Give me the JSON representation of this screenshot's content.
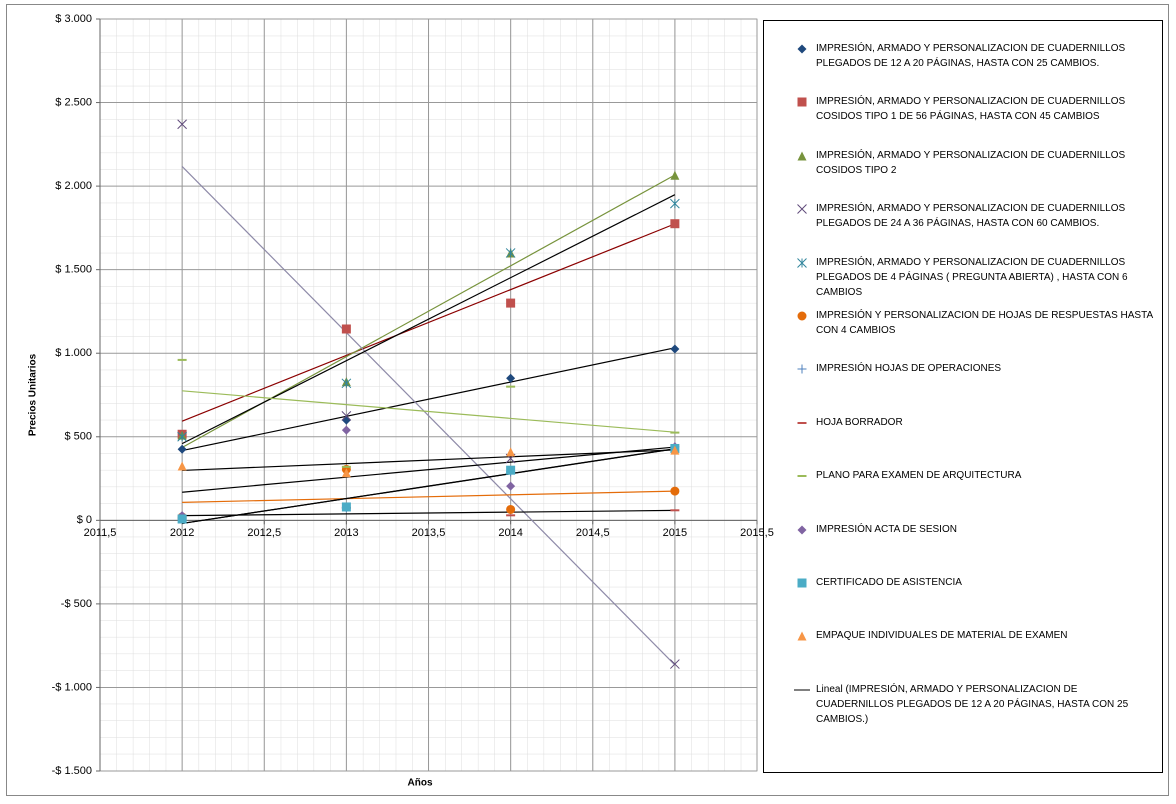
{
  "chart_data": {
    "type": "scatter",
    "xlabel": "Años",
    "ylabel": "Precios Unitarios",
    "x": [
      2012,
      2013,
      2014,
      2015
    ],
    "xlim": [
      2011.5,
      2015.5
    ],
    "xticks": [
      {
        "value": 2011.5,
        "label": "2011,5"
      },
      2012,
      {
        "value": 2012.5,
        "label": "2012,5"
      },
      2013,
      {
        "value": 2013.5,
        "label": "2013,5"
      },
      2014,
      {
        "value": 2014.5,
        "label": "2014,5"
      },
      2015,
      {
        "value": 2015.5,
        "label": "2015,5"
      }
    ],
    "ylim": [
      -1500,
      3000
    ],
    "yticks": [
      {
        "value": -1500,
        "label": "-$ 1.500"
      },
      {
        "value": -1000,
        "label": "-$ 1.000"
      },
      {
        "value": -500,
        "label": "-$ 500"
      },
      {
        "value": 0,
        "label": "$ 0"
      },
      {
        "value": 500,
        "label": "$ 500"
      },
      {
        "value": 1000,
        "label": "$ 1.000"
      },
      {
        "value": 1500,
        "label": "$ 1.500"
      },
      {
        "value": 2000,
        "label": "$ 2.000"
      },
      {
        "value": 2500,
        "label": "$ 2.500"
      },
      {
        "value": 3000,
        "label": "$ 3.000"
      }
    ],
    "grid": true,
    "legend": "right",
    "trendline_color": "#000000",
    "trendline_label": "Lineal (IMPRESIÓN, ARMADO Y PERSONALIZACION DE CUADERNILLOS PLEGADOS DE 12 A 20 PÁGINAS, HASTA CON 25 CAMBIOS.)",
    "series": [
      {
        "name": "IMPRESIÓN, ARMADO Y PERSONALIZACION DE CUADERNILLOS PLEGADOS DE 12 A 20 PÁGINAS, HASTA CON 25 CAMBIOS.",
        "color": "#1F497D",
        "marker": "diamond",
        "values": [
          425,
          600,
          850,
          1025
        ]
      },
      {
        "name": "IMPRESIÓN, ARMADO Y PERSONALIZACION DE CUADERNILLOS COSIDOS TIPO 1 DE 56 PÁGINAS, HASTA CON 45 CAMBIOS",
        "color": "#C0504D",
        "marker": "square",
        "values": [
          515,
          1145,
          1300,
          1775
        ]
      },
      {
        "name": "IMPRESIÓN, ARMADO Y PERSONALIZACION DE CUADERNILLOS COSIDOS TIPO 2",
        "color": "#77933C",
        "marker": "triangle",
        "values": [
          510,
          830,
          1600,
          2065
        ]
      },
      {
        "name": "IMPRESIÓN, ARMADO Y PERSONALIZACION DE CUADERNILLOS PLEGADOS DE 24 A 36 PÁGINAS, HASTA CON 60 CAMBIOS.",
        "color": "#604A7B",
        "marker": "x",
        "values": [
          2370,
          625,
          370,
          -860
        ]
      },
      {
        "name": "IMPRESIÓN, ARMADO Y PERSONALIZACION DE CUADERNILLOS PLEGADOS DE 4 PÁGINAS ( PREGUNTA ABIERTA) , HASTA CON 6 CAMBIOS",
        "color": "#31859C",
        "marker": "asterisk",
        "values": [
          500,
          820,
          1600,
          1895
        ]
      },
      {
        "name": "IMPRESIÓN Y PERSONALIZACION DE HOJAS DE RESPUESTAS HASTA CON 4 CAMBIOS",
        "color": "#E46C0A",
        "marker": "circle",
        "values": [
          20,
          305,
          65,
          175
        ]
      },
      {
        "name": "IMPRESIÓN HOJAS DE OPERACIONES",
        "color": "#4F81BD",
        "marker": "plus",
        "values": [
          15,
          75,
          290,
          440
        ]
      },
      {
        "name": "HOJA BORRADOR",
        "color": "#C0504D",
        "marker": "dash",
        "values": [
          10,
          75,
          30,
          60
        ]
      },
      {
        "name": "PLANO PARA EXAMEN DE ARQUITECTURA",
        "color": "#9BBB59",
        "marker": "dash",
        "values": [
          960,
          320,
          800,
          525
        ]
      },
      {
        "name": "IMPRESIÓN ACTA DE SESION",
        "color": "#8064A2",
        "marker": "diamond",
        "values": [
          28,
          540,
          205,
          440
        ]
      },
      {
        "name": "CERTIFICADO DE ASISTENCIA",
        "color": "#4BACC6",
        "marker": "square",
        "values": [
          8,
          80,
          300,
          430
        ]
      },
      {
        "name": "EMPAQUE INDIVIDUALES DE MATERIAL DE EXAMEN",
        "color": "#F79646",
        "marker": "triangle",
        "values": [
          325,
          285,
          410,
          420
        ]
      }
    ]
  }
}
